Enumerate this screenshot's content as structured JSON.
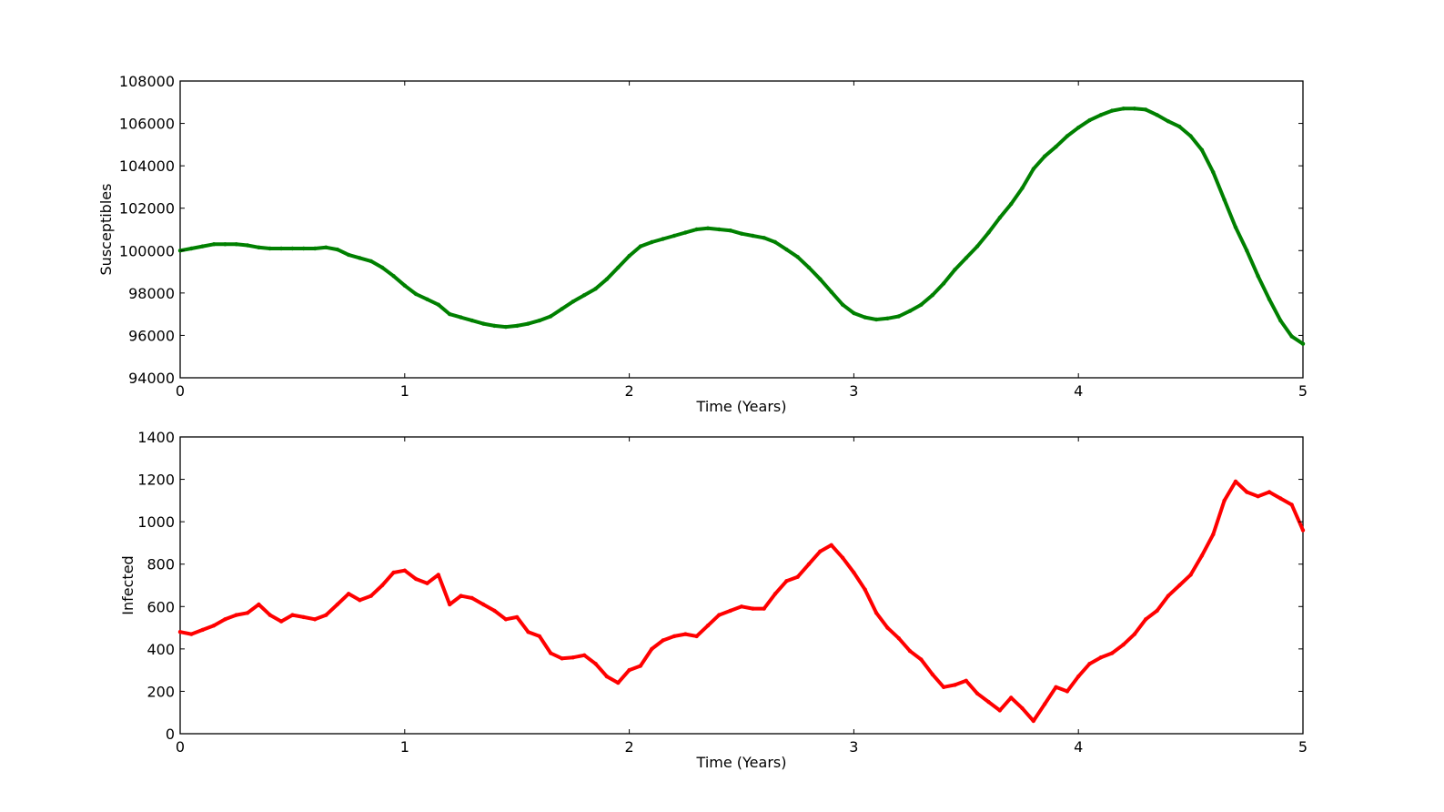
{
  "chart_data": [
    {
      "type": "line",
      "xlabel": "Time (Years)",
      "ylabel": "Susceptibles",
      "xlim": [
        0,
        5
      ],
      "ylim": [
        94000,
        108000
      ],
      "xticks": [
        "0",
        "1",
        "2",
        "3",
        "4",
        "5"
      ],
      "yticks": [
        "94000",
        "96000",
        "98000",
        "100000",
        "102000",
        "104000",
        "106000",
        "108000"
      ],
      "grid": false,
      "color": "#008000",
      "series": [
        {
          "x": [
            0,
            0.05,
            0.1,
            0.15,
            0.2,
            0.25,
            0.3,
            0.35,
            0.4,
            0.45,
            0.5,
            0.55,
            0.6,
            0.65,
            0.7,
            0.75,
            0.8,
            0.85,
            0.9,
            0.95,
            1.0,
            1.05,
            1.1,
            1.15,
            1.2,
            1.25,
            1.3,
            1.35,
            1.4,
            1.45,
            1.5,
            1.55,
            1.6,
            1.65,
            1.7,
            1.75,
            1.8,
            1.85,
            1.9,
            1.95,
            2.0,
            2.05,
            2.1,
            2.15,
            2.2,
            2.25,
            2.3,
            2.35,
            2.4,
            2.45,
            2.5,
            2.55,
            2.6,
            2.65,
            2.7,
            2.75,
            2.8,
            2.85,
            2.9,
            2.95,
            3.0,
            3.05,
            3.1,
            3.15,
            3.2,
            3.25,
            3.3,
            3.35,
            3.4,
            3.45,
            3.5,
            3.55,
            3.6,
            3.65,
            3.7,
            3.75,
            3.8,
            3.85,
            3.9,
            3.95,
            4.0,
            4.05,
            4.1,
            4.15,
            4.2,
            4.25,
            4.3,
            4.35,
            4.4,
            4.45,
            4.5,
            4.55,
            4.6,
            4.65,
            4.7,
            4.75,
            4.8,
            4.85,
            4.9,
            4.95,
            5.0
          ],
          "y": [
            100000,
            100100,
            100200,
            100300,
            100300,
            100300,
            100250,
            100150,
            100100,
            100100,
            100100,
            100100,
            100100,
            100150,
            100050,
            99800,
            99650,
            99500,
            99200,
            98800,
            98350,
            97950,
            97700,
            97450,
            97000,
            96850,
            96700,
            96550,
            96450,
            96400,
            96450,
            96550,
            96700,
            96900,
            97250,
            97600,
            97900,
            98200,
            98650,
            99200,
            99750,
            100200,
            100400,
            100550,
            100700,
            100850,
            101000,
            101050,
            101000,
            100950,
            100800,
            100700,
            100600,
            100400,
            100050,
            99700,
            99200,
            98650,
            98050,
            97450,
            97050,
            96850,
            96750,
            96800,
            96900,
            97150,
            97450,
            97900,
            98450,
            99100,
            99650,
            100200,
            100850,
            101550,
            102200,
            102950,
            103850,
            104450,
            104900,
            105400,
            105800,
            106150,
            106400,
            106600,
            106700,
            106700,
            106650,
            106400,
            106100,
            105850,
            105400,
            104750,
            103700,
            102400,
            101100,
            100000,
            98800,
            97700,
            96700,
            95950,
            95600
          ]
        }
      ]
    },
    {
      "type": "line",
      "xlabel": "Time (Years)",
      "ylabel": "Infected",
      "xlim": [
        0,
        5
      ],
      "ylim": [
        0,
        1400
      ],
      "xticks": [
        "0",
        "1",
        "2",
        "3",
        "4",
        "5"
      ],
      "yticks": [
        "0",
        "200",
        "400",
        "600",
        "800",
        "1000",
        "1200",
        "1400"
      ],
      "grid": false,
      "color": "#ff0000",
      "series": [
        {
          "x": [
            0,
            0.05,
            0.1,
            0.15,
            0.2,
            0.25,
            0.3,
            0.35,
            0.4,
            0.45,
            0.5,
            0.55,
            0.6,
            0.65,
            0.7,
            0.75,
            0.8,
            0.85,
            0.9,
            0.95,
            1.0,
            1.05,
            1.1,
            1.15,
            1.2,
            1.25,
            1.3,
            1.35,
            1.4,
            1.45,
            1.5,
            1.55,
            1.6,
            1.65,
            1.7,
            1.75,
            1.8,
            1.85,
            1.9,
            1.95,
            2.0,
            2.05,
            2.1,
            2.15,
            2.2,
            2.25,
            2.3,
            2.35,
            2.4,
            2.45,
            2.5,
            2.55,
            2.6,
            2.65,
            2.7,
            2.75,
            2.8,
            2.85,
            2.9,
            2.95,
            3.0,
            3.05,
            3.1,
            3.15,
            3.2,
            3.25,
            3.3,
            3.35,
            3.4,
            3.45,
            3.5,
            3.55,
            3.6,
            3.65,
            3.7,
            3.75,
            3.8,
            3.85,
            3.9,
            3.95,
            4.0,
            4.05,
            4.1,
            4.15,
            4.2,
            4.25,
            4.3,
            4.35,
            4.4,
            4.45,
            4.5,
            4.55,
            4.6,
            4.65,
            4.7,
            4.75,
            4.8,
            4.85,
            4.9,
            4.95,
            5.0
          ],
          "y": [
            480,
            470,
            490,
            510,
            540,
            560,
            570,
            610,
            560,
            530,
            560,
            550,
            540,
            560,
            610,
            660,
            630,
            650,
            700,
            760,
            770,
            730,
            710,
            750,
            610,
            650,
            640,
            610,
            580,
            540,
            550,
            480,
            460,
            380,
            355,
            360,
            370,
            330,
            270,
            240,
            300,
            320,
            400,
            440,
            460,
            470,
            460,
            510,
            560,
            580,
            600,
            590,
            590,
            660,
            720,
            740,
            800,
            860,
            890,
            830,
            760,
            680,
            570,
            500,
            450,
            390,
            350,
            280,
            220,
            230,
            250,
            190,
            150,
            110,
            170,
            120,
            60,
            140,
            220,
            200,
            270,
            330,
            360,
            380,
            420,
            470,
            540,
            580,
            650,
            700,
            750,
            840,
            940,
            1100,
            1190,
            1140,
            1120,
            1140,
            1110,
            1080,
            960
          ]
        }
      ]
    }
  ]
}
